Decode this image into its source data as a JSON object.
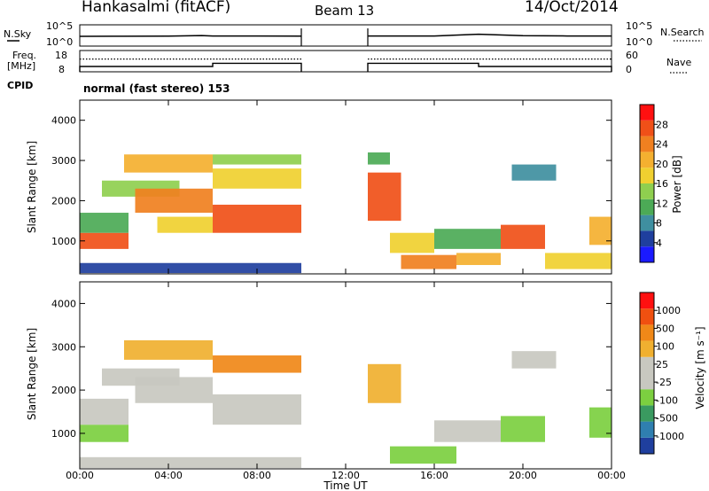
{
  "header": {
    "station": "Hankasalmi (fitACF)",
    "beam": "Beam 13",
    "date": "14/Oct/2014"
  },
  "noise_panel": {
    "left_label": "N.Sky",
    "right_label": "N.Search",
    "ticks_left": [
      "10^5",
      "10^0"
    ],
    "ticks_right": [
      "10^5",
      "10^0"
    ]
  },
  "freq_panel": {
    "left_label_1": "Freq.",
    "left_label_2": "[MHz]",
    "right_label": "Nave",
    "ticks_left": [
      "18",
      "8"
    ],
    "ticks_right": [
      "60",
      "0"
    ]
  },
  "cpid_panel": {
    "label": "CPID",
    "text": "normal (fast stereo) 153"
  },
  "time_axis": {
    "ticks": [
      "00:00",
      "04:00",
      "08:00",
      "12:00",
      "16:00",
      "20:00",
      "00:00"
    ],
    "label": "Time UT"
  },
  "colors": {
    "power_scale": [
      "#1a1aff",
      "#1f3f9e",
      "#3f8fa0",
      "#4caa56",
      "#8fcf4f",
      "#f0d030",
      "#f4b030",
      "#f08020",
      "#f05018",
      "#ff1010"
    ],
    "velocity_scale": [
      "#1f3f9e",
      "#2f7fb0",
      "#3a9a60",
      "#7ccf40",
      "#c8c8c0",
      "#c8c8c0",
      "#f0b030",
      "#f08818",
      "#f05010",
      "#ff1010"
    ]
  },
  "chart_data": [
    {
      "type": "line",
      "title": "",
      "xlabel": "",
      "ylabel": "N.Sky",
      "y_scale": "log",
      "ylim": [
        "10^0",
        "10^5"
      ],
      "x_range_hours": [
        0,
        24
      ],
      "data_gap_hours": [
        10,
        13
      ],
      "series": [
        {
          "name": "N.Sky",
          "x": [
            0,
            2,
            4,
            5.5,
            6,
            8,
            10,
            13,
            16,
            18,
            20,
            22,
            24
          ],
          "values": [
            200,
            210,
            220,
            300,
            240,
            230,
            220,
            230,
            240,
            600,
            280,
            240,
            230
          ]
        },
        {
          "name": "N.Search",
          "x": [
            0,
            10,
            13,
            24
          ],
          "values": [
            1,
            1,
            1,
            1
          ]
        }
      ]
    },
    {
      "type": "line",
      "title": "",
      "xlabel": "",
      "ylabel": "Freq. [MHz]",
      "ylim": [
        8,
        18
      ],
      "y2lim": [
        0,
        60
      ],
      "x_range_hours": [
        0,
        24
      ],
      "data_gap_hours": [
        10,
        13
      ],
      "series": [
        {
          "name": "Freq.",
          "x": [
            0,
            6,
            6,
            10,
            13,
            18,
            18,
            24
          ],
          "values": [
            10.5,
            10.5,
            12,
            12,
            12,
            12,
            10.5,
            10.5
          ]
        },
        {
          "name": "Nave",
          "x": [
            0,
            10,
            13,
            24
          ],
          "values": [
            36,
            36,
            36,
            36
          ]
        }
      ]
    },
    {
      "type": "heatmap",
      "title": "",
      "xlabel": "",
      "ylabel": "Slant Range [km]",
      "ylim": [
        180,
        4500
      ],
      "y_ticks": [
        "1000",
        "2000",
        "3000",
        "4000"
      ],
      "colorbar_label": "Power [dB]",
      "colorbar_ticks": [
        "28",
        "24",
        "20",
        "16",
        "12",
        "8",
        "4"
      ],
      "clim": [
        0,
        32
      ],
      "x_range_hours": [
        0,
        24
      ],
      "data_gap_hours": [
        10,
        13
      ],
      "bands": [
        {
          "t0": 0.0,
          "t1": 2.2,
          "r0": 800,
          "r1": 1200,
          "v": 26
        },
        {
          "t0": 0.0,
          "t1": 2.2,
          "r0": 1200,
          "r1": 1700,
          "v": 12
        },
        {
          "t0": 1.0,
          "t1": 4.5,
          "r0": 2100,
          "r1": 2500,
          "v": 14
        },
        {
          "t0": 2.0,
          "t1": 6.0,
          "r0": 2700,
          "r1": 3150,
          "v": 20
        },
        {
          "t0": 2.5,
          "t1": 6.0,
          "r0": 1700,
          "r1": 2300,
          "v": 24
        },
        {
          "t0": 3.5,
          "t1": 6.0,
          "r0": 1200,
          "r1": 1600,
          "v": 16
        },
        {
          "t0": 6.0,
          "t1": 10.0,
          "r0": 1200,
          "r1": 1900,
          "v": 27
        },
        {
          "t0": 6.0,
          "t1": 10.0,
          "r0": 2300,
          "r1": 2800,
          "v": 18
        },
        {
          "t0": 6.0,
          "t1": 10.0,
          "r0": 2900,
          "r1": 3150,
          "v": 14
        },
        {
          "t0": 0.0,
          "t1": 10.0,
          "r0": 200,
          "r1": 450,
          "v": 6
        },
        {
          "t0": 13.0,
          "t1": 14.5,
          "r0": 1500,
          "r1": 2700,
          "v": 26
        },
        {
          "t0": 13.0,
          "t1": 14.0,
          "r0": 2900,
          "r1": 3200,
          "v": 12
        },
        {
          "t0": 14.0,
          "t1": 16.0,
          "r0": 700,
          "r1": 1200,
          "v": 16
        },
        {
          "t0": 14.5,
          "t1": 17.0,
          "r0": 300,
          "r1": 650,
          "v": 24
        },
        {
          "t0": 16.0,
          "t1": 19.0,
          "r0": 800,
          "r1": 1300,
          "v": 12
        },
        {
          "t0": 17.0,
          "t1": 19.0,
          "r0": 400,
          "r1": 700,
          "v": 22
        },
        {
          "t0": 19.0,
          "t1": 21.0,
          "r0": 800,
          "r1": 1400,
          "v": 26
        },
        {
          "t0": 19.5,
          "t1": 21.5,
          "r0": 2500,
          "r1": 2900,
          "v": 8
        },
        {
          "t0": 21.0,
          "t1": 24.0,
          "r0": 300,
          "r1": 700,
          "v": 18
        },
        {
          "t0": 23.0,
          "t1": 24.0,
          "r0": 900,
          "r1": 1600,
          "v": 20
        }
      ]
    },
    {
      "type": "heatmap",
      "title": "",
      "xlabel": "Time UT",
      "ylabel": "Slant Range [km]",
      "ylim": [
        180,
        4500
      ],
      "y_ticks": [
        "1000",
        "2000",
        "3000",
        "4000"
      ],
      "colorbar_label": "Velocity [m s⁻¹]",
      "colorbar_ticks": [
        "1000",
        "500",
        "100",
        "25",
        "-25",
        "-100",
        "-500",
        "-1000"
      ],
      "clim": [
        -1000,
        1000
      ],
      "x_range_hours": [
        0,
        24
      ],
      "data_gap_hours": [
        10,
        13
      ],
      "bands": [
        {
          "t0": 0.0,
          "t1": 2.2,
          "r0": 800,
          "r1": 1200,
          "v": -300
        },
        {
          "t0": 0.0,
          "t1": 2.2,
          "r0": 1200,
          "r1": 1800,
          "v": 0
        },
        {
          "t0": 1.0,
          "t1": 4.5,
          "r0": 2100,
          "r1": 2500,
          "v": 0
        },
        {
          "t0": 2.0,
          "t1": 6.0,
          "r0": 2700,
          "r1": 3150,
          "v": 300
        },
        {
          "t0": 2.5,
          "t1": 6.0,
          "r0": 1700,
          "r1": 2300,
          "v": 0
        },
        {
          "t0": 6.0,
          "t1": 10.0,
          "r0": 1200,
          "r1": 1900,
          "v": 0
        },
        {
          "t0": 6.0,
          "t1": 10.0,
          "r0": 2400,
          "r1": 2800,
          "v": 500
        },
        {
          "t0": 0.0,
          "t1": 10.0,
          "r0": 200,
          "r1": 450,
          "v": -150
        },
        {
          "t0": 13.0,
          "t1": 14.5,
          "r0": 1700,
          "r1": 2600,
          "v": 200
        },
        {
          "t0": 14.0,
          "t1": 17.0,
          "r0": 300,
          "r1": 700,
          "v": -300
        },
        {
          "t0": 16.0,
          "t1": 19.0,
          "r0": 800,
          "r1": 1300,
          "v": 0
        },
        {
          "t0": 19.0,
          "t1": 21.0,
          "r0": 800,
          "r1": 1400,
          "v": -400
        },
        {
          "t0": 19.5,
          "t1": 21.5,
          "r0": 2500,
          "r1": 2900,
          "v": 0
        },
        {
          "t0": 23.0,
          "t1": 24.0,
          "r0": 900,
          "r1": 1600,
          "v": -300
        }
      ]
    }
  ]
}
